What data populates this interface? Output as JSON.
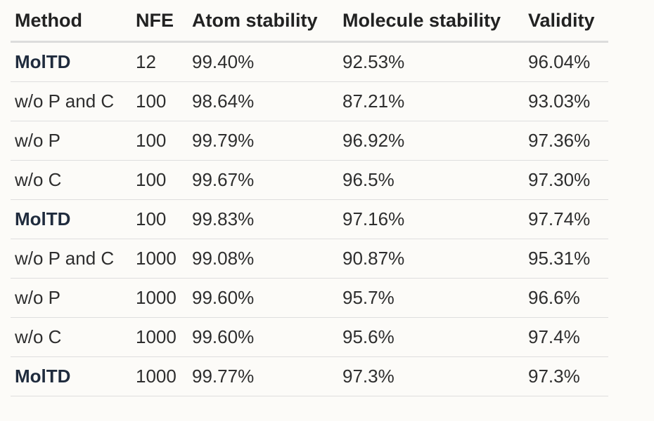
{
  "table": {
    "headers": [
      "Method",
      "NFE",
      "Atom stability",
      "Molecule stability",
      "Validity"
    ],
    "rows": [
      {
        "method": "MolTD",
        "bold": true,
        "nfe": "12",
        "atom": "99.40%",
        "molecule": "92.53%",
        "validity": "96.04%"
      },
      {
        "method": "w/o P and C",
        "bold": false,
        "nfe": "100",
        "atom": "98.64%",
        "molecule": "87.21%",
        "validity": "93.03%"
      },
      {
        "method": "w/o P",
        "bold": false,
        "nfe": "100",
        "atom": "99.79%",
        "molecule": "96.92%",
        "validity": "97.36%"
      },
      {
        "method": "w/o C",
        "bold": false,
        "nfe": "100",
        "atom": "99.67%",
        "molecule": "96.5%",
        "validity": "97.30%"
      },
      {
        "method": "MolTD",
        "bold": true,
        "nfe": "100",
        "atom": "99.83%",
        "molecule": "97.16%",
        "validity": "97.74%"
      },
      {
        "method": "w/o P and C",
        "bold": false,
        "nfe": "1000",
        "atom": "99.08%",
        "molecule": "90.87%",
        "validity": "95.31%"
      },
      {
        "method": "w/o P",
        "bold": false,
        "nfe": "1000",
        "atom": "99.60%",
        "molecule": "95.7%",
        "validity": "96.6%"
      },
      {
        "method": "w/o C",
        "bold": false,
        "nfe": "1000",
        "atom": "99.60%",
        "molecule": "95.6%",
        "validity": "97.4%"
      },
      {
        "method": "MolTD",
        "bold": true,
        "nfe": "1000",
        "atom": "99.77%",
        "molecule": "97.3%",
        "validity": "97.3%"
      }
    ]
  }
}
